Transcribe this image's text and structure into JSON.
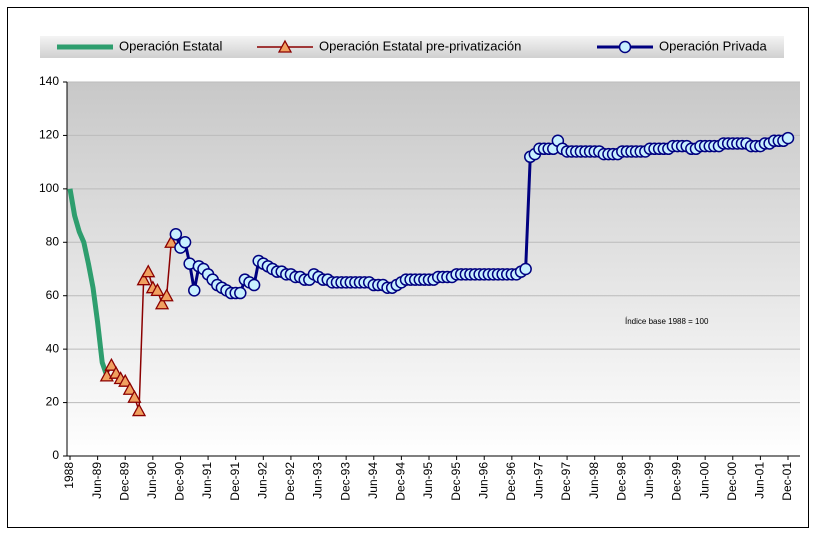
{
  "chart_data": {
    "type": "line",
    "legend": "top",
    "grid": true,
    "annotation": "Índice base 1988 = 100",
    "ylim": [
      0,
      140
    ],
    "yticks": [
      0,
      20,
      40,
      60,
      80,
      100,
      120,
      140
    ],
    "categories": [
      "1988",
      null,
      null,
      null,
      null,
      null,
      "Jun-89",
      null,
      null,
      null,
      null,
      null,
      "Dec-89",
      null,
      null,
      null,
      null,
      null,
      "Jun-90",
      null,
      null,
      null,
      null,
      null,
      "Dec-90",
      null,
      null,
      null,
      null,
      null,
      "Jun-91",
      null,
      null,
      null,
      null,
      null,
      "Dec-91",
      null,
      null,
      null,
      null,
      null,
      "Jun-92",
      null,
      null,
      null,
      null,
      null,
      "Dec-92",
      null,
      null,
      null,
      null,
      null,
      "Jun-93",
      null,
      null,
      null,
      null,
      null,
      "Dec-93",
      null,
      null,
      null,
      null,
      null,
      "Jun-94",
      null,
      null,
      null,
      null,
      null,
      "Dec-94",
      null,
      null,
      null,
      null,
      null,
      "Jun-95",
      null,
      null,
      null,
      null,
      null,
      "Dec-95",
      null,
      null,
      null,
      null,
      null,
      "Jun-96",
      null,
      null,
      null,
      null,
      null,
      "Dec-96",
      null,
      null,
      null,
      null,
      null,
      "Jun-97",
      null,
      null,
      null,
      null,
      null,
      "Dec-97",
      null,
      null,
      null,
      null,
      null,
      "Jun-98",
      null,
      null,
      null,
      null,
      null,
      "Dec-98",
      null,
      null,
      null,
      null,
      null,
      "Jun-99",
      null,
      null,
      null,
      null,
      null,
      "Dec-99",
      null,
      null,
      null,
      null,
      null,
      "Jun-00",
      null,
      null,
      null,
      null,
      null,
      "Dec-00",
      null,
      null,
      null,
      null,
      null,
      "Jun-01",
      null,
      null,
      null,
      null,
      null,
      "Dec-01"
    ],
    "series": [
      {
        "name": "Operación Estatal",
        "color": "#2e9e6e",
        "marker": "none",
        "values": [
          100,
          90,
          84,
          80,
          72,
          63,
          50,
          35,
          30,
          null,
          null,
          null,
          null,
          null,
          null,
          null,
          null,
          null,
          null,
          null,
          null,
          null,
          null,
          null,
          null,
          null,
          null,
          null,
          null,
          null,
          null,
          null,
          null,
          null,
          null,
          null,
          null,
          null,
          null,
          null,
          null,
          null,
          null,
          null,
          null,
          null,
          null,
          null,
          null,
          null,
          null,
          null,
          null,
          null,
          null,
          null,
          null,
          null,
          null,
          null,
          null,
          null,
          null,
          null,
          null,
          null,
          null,
          null,
          null,
          null,
          null,
          null,
          null,
          null,
          null,
          null,
          null,
          null,
          null,
          null,
          null,
          null,
          null,
          null,
          null,
          null,
          null,
          null,
          null,
          null,
          null,
          null,
          null,
          null,
          null,
          null,
          null,
          null,
          null,
          null,
          null,
          null,
          null,
          null,
          null,
          null,
          null,
          null,
          null,
          null,
          null,
          null,
          null,
          null,
          null,
          null,
          null,
          null,
          null,
          null,
          null,
          null,
          null,
          null,
          null,
          null,
          null,
          null,
          null,
          null,
          null,
          null,
          null,
          null,
          null,
          null,
          null,
          null,
          null,
          null,
          null,
          null,
          null,
          null,
          null,
          null,
          null,
          null,
          null,
          null,
          null,
          null,
          null,
          null,
          null,
          null,
          null
        ]
      },
      {
        "name": "Operación Estatal pre-privatización",
        "color": "#8b0000",
        "marker": "triangle",
        "values": [
          null,
          null,
          null,
          null,
          null,
          null,
          null,
          null,
          30,
          34,
          31,
          29,
          28,
          25,
          22,
          17,
          66,
          69,
          63,
          62,
          57,
          60,
          80,
          null,
          null,
          null,
          null,
          null,
          null,
          null,
          null,
          null,
          null,
          null,
          null,
          null,
          null,
          null,
          null,
          null,
          null,
          null,
          null,
          null,
          null,
          null,
          null,
          null,
          null,
          null,
          null,
          null,
          null,
          null,
          null,
          null,
          null,
          null,
          null,
          null,
          null,
          null,
          null,
          null,
          null,
          null,
          null,
          null,
          null,
          null,
          null,
          null,
          null,
          null,
          null,
          null,
          null,
          null,
          null,
          null,
          null,
          null,
          null,
          null,
          null,
          null,
          null,
          null,
          null,
          null,
          null,
          null,
          null,
          null,
          null,
          null,
          null,
          null,
          null,
          null,
          null,
          null,
          null,
          null,
          null,
          null,
          null,
          null,
          null,
          null,
          null,
          null,
          null,
          null,
          null,
          null,
          null,
          null,
          null,
          null,
          null,
          null,
          null,
          null,
          null,
          null,
          null,
          null,
          null,
          null,
          null,
          null,
          null,
          null,
          null,
          null,
          null,
          null,
          null,
          null,
          null,
          null,
          null,
          null,
          null,
          null,
          null,
          null,
          null,
          null,
          null,
          null,
          null,
          null,
          null,
          null,
          null
        ]
      },
      {
        "name": "Operación Privada",
        "color": "#000080",
        "marker": "circle",
        "values": [
          null,
          null,
          null,
          null,
          null,
          null,
          null,
          null,
          null,
          null,
          null,
          null,
          null,
          null,
          null,
          null,
          null,
          null,
          null,
          null,
          null,
          null,
          null,
          83,
          78,
          80,
          72,
          62,
          71,
          70,
          68,
          66,
          64,
          63,
          62,
          61,
          61,
          61,
          66,
          65,
          64,
          73,
          72,
          71,
          70,
          69,
          69,
          68,
          68,
          67,
          67,
          66,
          66,
          68,
          67,
          66,
          66,
          65,
          65,
          65,
          65,
          65,
          65,
          65,
          65,
          65,
          64,
          64,
          64,
          63,
          63,
          64,
          65,
          66,
          66,
          66,
          66,
          66,
          66,
          66,
          67,
          67,
          67,
          67,
          68,
          68,
          68,
          68,
          68,
          68,
          68,
          68,
          68,
          68,
          68,
          68,
          68,
          68,
          69,
          70,
          112,
          113,
          115,
          115,
          115,
          115,
          118,
          115,
          114,
          114,
          114,
          114,
          114,
          114,
          114,
          114,
          113,
          113,
          113,
          113,
          114,
          114,
          114,
          114,
          114,
          114,
          115,
          115,
          115,
          115,
          115,
          116,
          116,
          116,
          116,
          115,
          115,
          116,
          116,
          116,
          116,
          116,
          117,
          117,
          117,
          117,
          117,
          117,
          116,
          116,
          116,
          117,
          117,
          118,
          118,
          118,
          119
        ]
      }
    ]
  }
}
